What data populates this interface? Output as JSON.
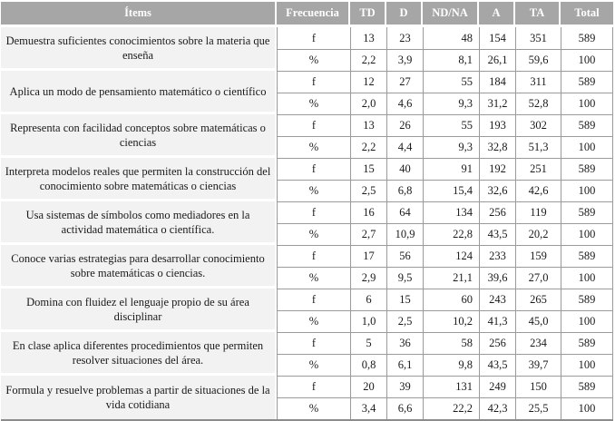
{
  "table": {
    "columns": [
      "Ítems",
      "Frecuencia",
      "TD",
      "D",
      "ND/NA",
      "A",
      "TA",
      "Total"
    ],
    "freq_labels": {
      "absolute": "f",
      "percent": "%"
    },
    "groups": [
      {
        "item": "Demuestra suficientes conocimientos sobre la materia que enseña",
        "f": [
          "13",
          "23",
          "48",
          "154",
          "351",
          "589"
        ],
        "pct": [
          "2,2",
          "3,9",
          "8,1",
          "26,1",
          "59,6",
          "100"
        ]
      },
      {
        "item": "Aplica un modo de pensamiento matemático o científico",
        "f": [
          "12",
          "27",
          "55",
          "184",
          "311",
          "589"
        ],
        "pct": [
          "2,0",
          "4,6",
          "9,3",
          "31,2",
          "52,8",
          "100"
        ]
      },
      {
        "item": "Representa con facilidad conceptos sobre matemáticas o ciencias",
        "f": [
          "13",
          "26",
          "55",
          "193",
          "302",
          "589"
        ],
        "pct": [
          "2,2",
          "4,4",
          "9,3",
          "32,8",
          "51,3",
          "100"
        ]
      },
      {
        "item": "Interpreta modelos reales que permiten la construcción del conocimiento sobre matemáticas o ciencias",
        "f": [
          "15",
          "40",
          "91",
          "192",
          "251",
          "589"
        ],
        "pct": [
          "2,5",
          "6,8",
          "15,4",
          "32,6",
          "42,6",
          "100"
        ]
      },
      {
        "item": "Usa sistemas de símbolos como mediadores en la actividad matemática o científica.",
        "f": [
          "16",
          "64",
          "134",
          "256",
          "119",
          "589"
        ],
        "pct": [
          "2,7",
          "10,9",
          "22,8",
          "43,5",
          "20,2",
          "100"
        ]
      },
      {
        "item": "Conoce varias estrategias para desarrollar conocimiento sobre matemáticas o ciencias.",
        "f": [
          "17",
          "56",
          "124",
          "233",
          "159",
          "589"
        ],
        "pct": [
          "2,9",
          "9,5",
          "21,1",
          "39,6",
          "27,0",
          "100"
        ]
      },
      {
        "item": "Domina con fluidez el lenguaje propio de su área disciplinar",
        "f": [
          "6",
          "15",
          "60",
          "243",
          "265",
          "589"
        ],
        "pct": [
          "1,0",
          "2,5",
          "10,2",
          "41,3",
          "45,0",
          "100"
        ]
      },
      {
        "item": "En clase aplica diferentes procedimientos que permiten resolver situaciones del área.",
        "f": [
          "5",
          "36",
          "58",
          "256",
          "234",
          "589"
        ],
        "pct": [
          "0,8",
          "6,1",
          "9,8",
          "43,5",
          "39,7",
          "100"
        ]
      },
      {
        "item": "Formula y resuelve problemas a partir de situaciones de la vida cotidiana",
        "f": [
          "20",
          "39",
          "131",
          "249",
          "150",
          "589"
        ],
        "pct": [
          "3,4",
          "6,6",
          "22,2",
          "42,3",
          "25,5",
          "100"
        ]
      }
    ]
  },
  "colors": {
    "header_bg": "#a6a6a6",
    "header_text": "#ffffff",
    "item_bg": "#f2f2f2",
    "border": "#9b9b9b",
    "bottom_border": "#8c8c8c",
    "text": "#1a1a1a"
  }
}
